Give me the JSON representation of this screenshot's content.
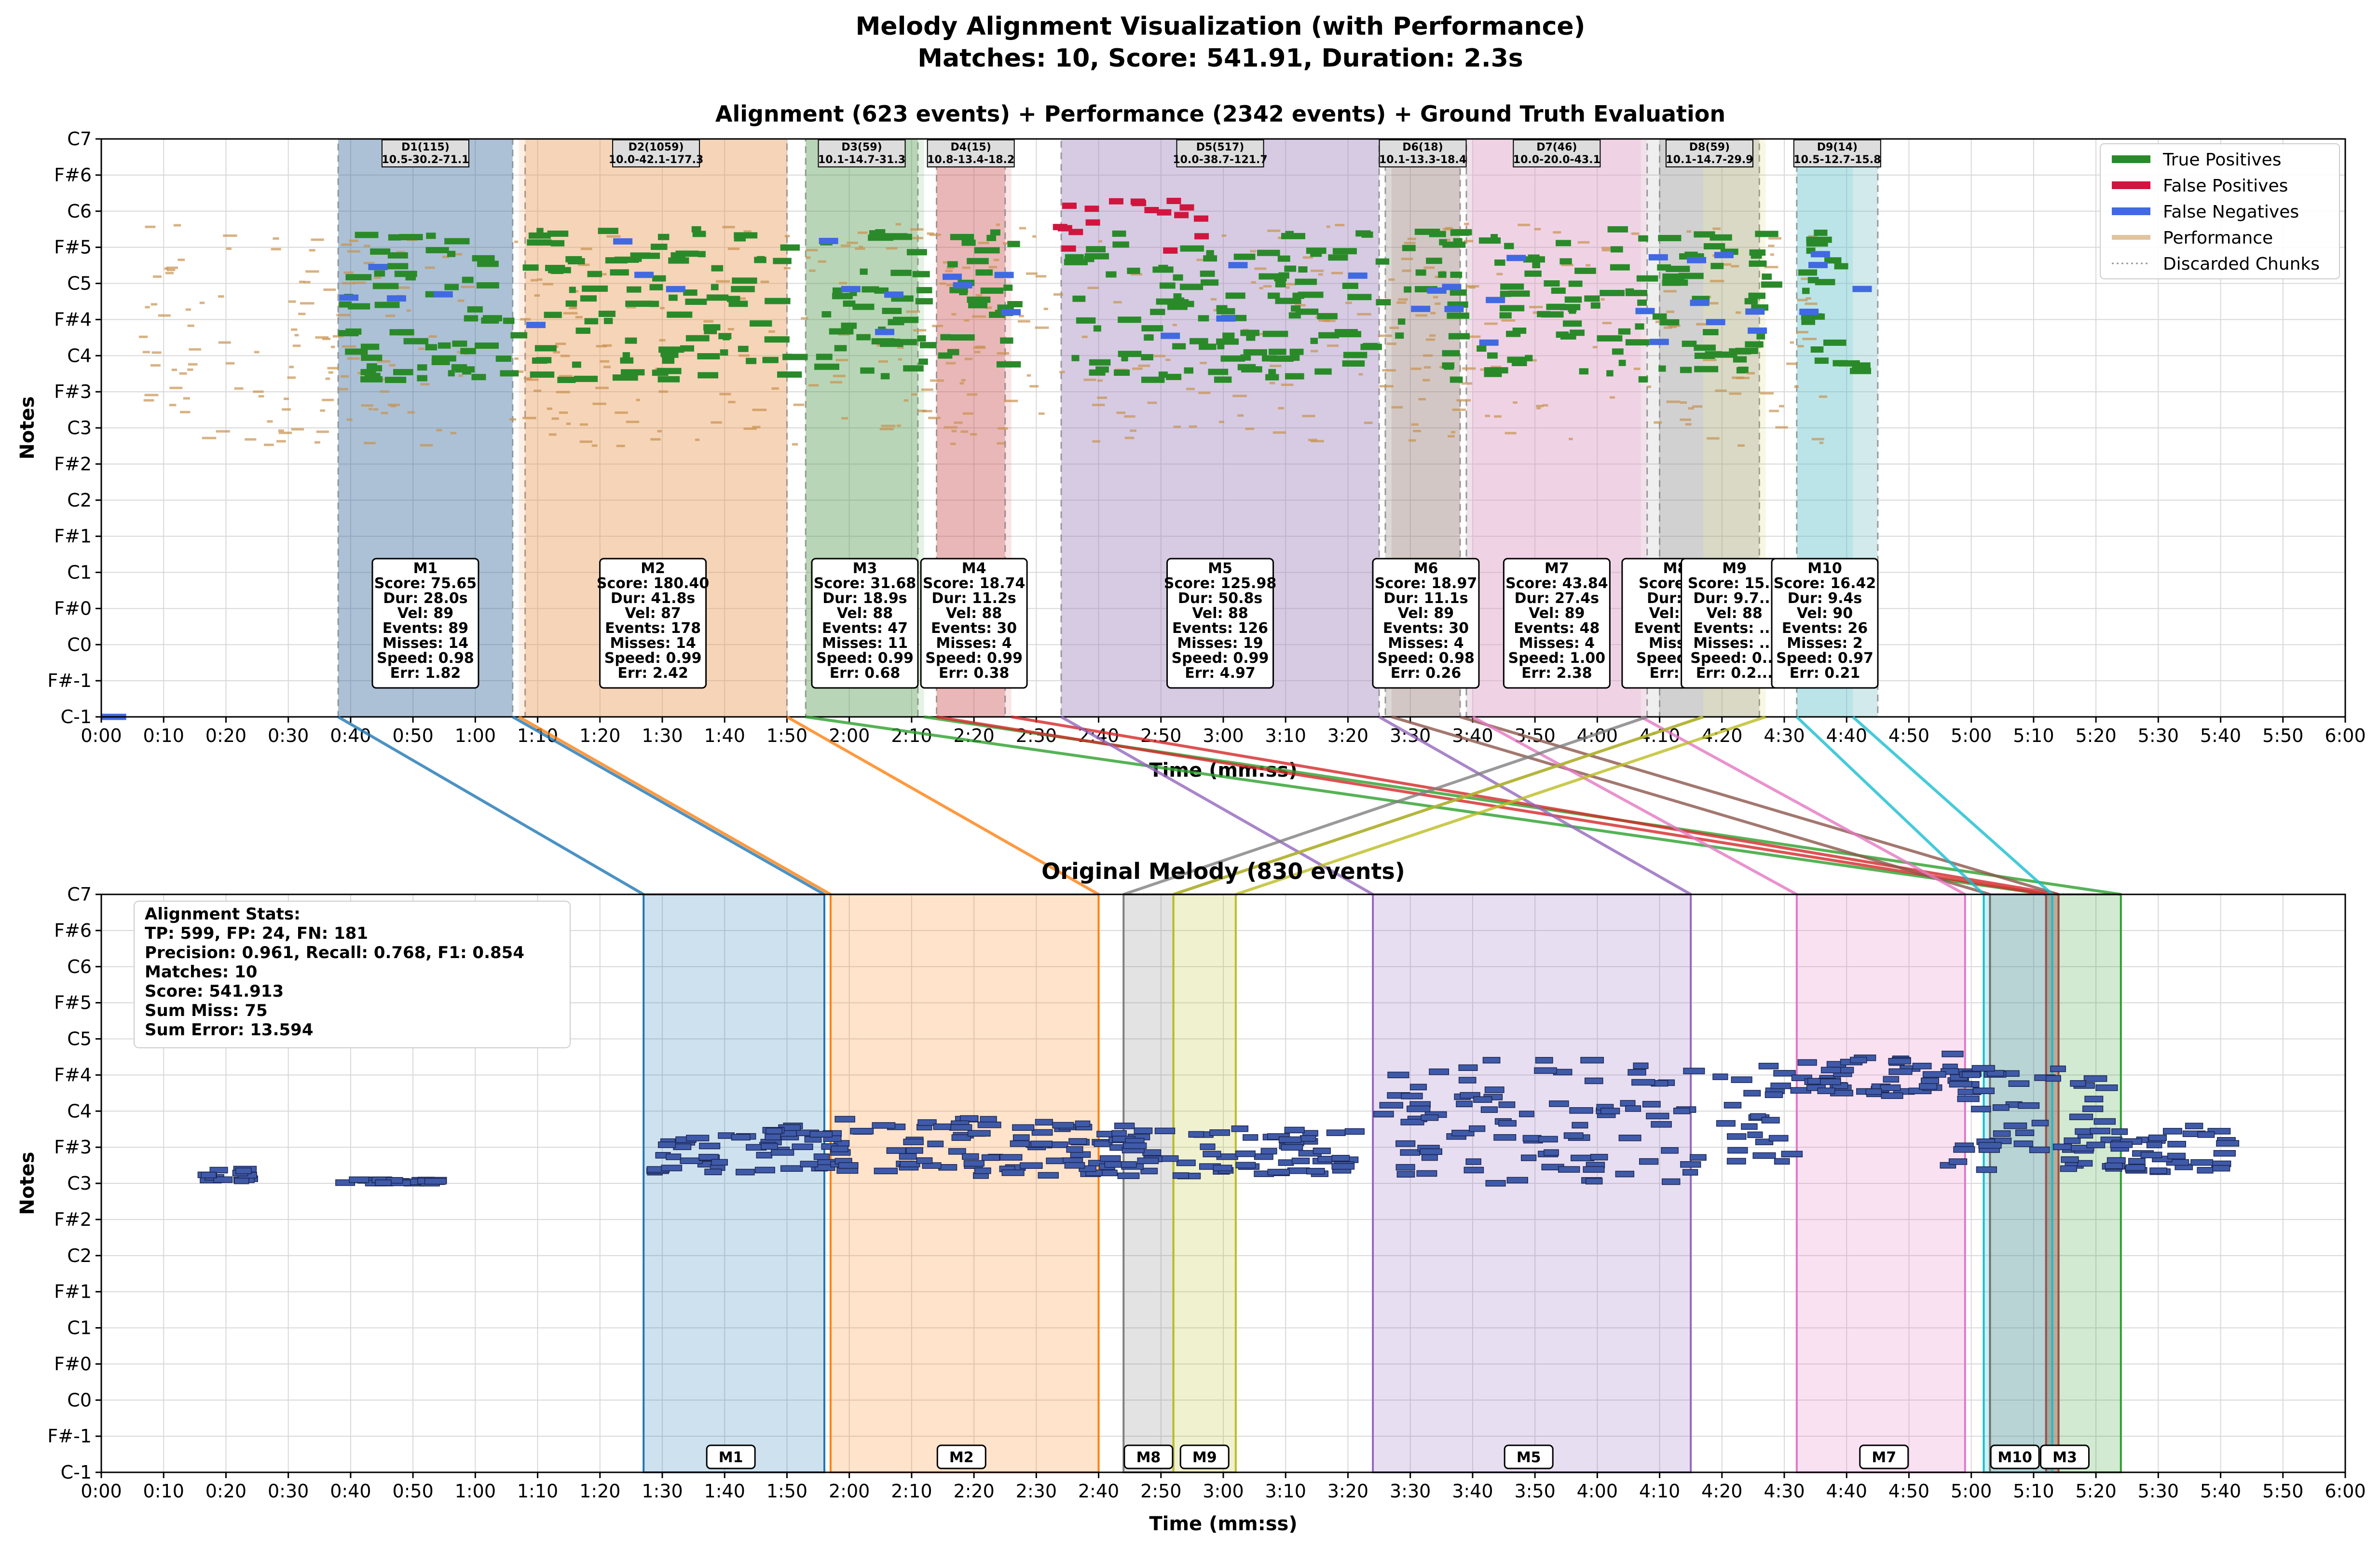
{
  "figure": {
    "title_line1": "Melody Alignment Visualization (with Performance)",
    "title_line2": "Matches: 10, Score: 541.91, Duration: 2.3s"
  },
  "colors": {
    "true_positive": "#2a8a2a",
    "false_positive": "#d0163e",
    "false_negative": "#4169e1",
    "performance": "#c8914e",
    "original_note": "#3f5aa8"
  },
  "chart_data": [
    {
      "type": "timeline",
      "title": "Alignment (623 events) + Performance (2342 events) + Ground Truth Evaluation",
      "xlabel": "Time (mm:ss)",
      "ylabel": "Notes",
      "xlim": [
        0,
        360
      ],
      "x_ticks": [
        "0:00",
        "0:10",
        "0:20",
        "0:30",
        "0:40",
        "0:50",
        "1:00",
        "1:10",
        "1:20",
        "1:30",
        "1:40",
        "1:50",
        "2:00",
        "2:10",
        "2:20",
        "2:30",
        "2:40",
        "2:50",
        "3:00",
        "3:10",
        "3:20",
        "3:30",
        "3:40",
        "3:50",
        "4:00",
        "4:10",
        "4:20",
        "4:30",
        "4:40",
        "4:50",
        "5:00",
        "5:10",
        "5:20",
        "5:30",
        "5:40",
        "5:50",
        "6:00"
      ],
      "y_ticks": [
        "C-1",
        "F#-1",
        "C0",
        "F#0",
        "C1",
        "F#1",
        "C2",
        "F#2",
        "C3",
        "F#3",
        "C4",
        "F#4",
        "C5",
        "F#5",
        "C6",
        "F#6",
        "C7"
      ],
      "grid": true,
      "legend_position": "top-right",
      "legend": [
        "True Positives",
        "False Positives",
        "False Negatives",
        "Performance",
        "Discarded Chunks"
      ],
      "discarded_chunks": [
        {
          "label": "D1(115)",
          "detail": "10.5-30.2-71.1",
          "start": 38,
          "end": 66
        },
        {
          "label": "D2(1059)",
          "detail": "10.0-42.1-177.3",
          "start": 68,
          "end": 110
        },
        {
          "label": "D3(59)",
          "detail": "10.1-14.7-31.3",
          "start": 113,
          "end": 131
        },
        {
          "label": "D4(15)",
          "detail": "10.8-13.4-18.2",
          "start": 134,
          "end": 145
        },
        {
          "label": "D5(517)",
          "detail": "10.0-38.7-121.7",
          "start": 154,
          "end": 205
        },
        {
          "label": "D6(18)",
          "detail": "10.1-13.3-18.4",
          "start": 206,
          "end": 218
        },
        {
          "label": "D7(46)",
          "detail": "10.0-20.0-43.1",
          "start": 219,
          "end": 248
        },
        {
          "label": "D8(59)",
          "detail": "10.1-14.7-29.9",
          "start": 250,
          "end": 266
        },
        {
          "label": "D9(14)",
          "detail": "10.5-12.7-15.8",
          "start": 272,
          "end": 285
        }
      ],
      "matches": [
        {
          "label": "M1",
          "score": "Score: 75.65",
          "dur": "Dur: 28.0s",
          "vel": "Vel: 89",
          "events": "Events: 89",
          "misses": "Misses: 14",
          "speed": "Speed: 0.98",
          "err": "Err: 1.82",
          "perf_start": 38,
          "perf_end": 66,
          "orig_start": 87,
          "orig_end": 116,
          "color": "#1f77b4"
        },
        {
          "label": "M2",
          "score": "Score: 180.40",
          "dur": "Dur: 41.8s",
          "vel": "Vel: 87",
          "events": "Events: 178",
          "misses": "Misses: 14",
          "speed": "Speed: 0.99",
          "err": "Err: 2.42",
          "perf_start": 67,
          "perf_end": 110,
          "orig_start": 117,
          "orig_end": 160,
          "color": "#ff7f0e"
        },
        {
          "label": "M3",
          "score": "Score: 31.68",
          "dur": "Dur: 18.9s",
          "vel": "Vel: 88",
          "events": "Events: 47",
          "misses": "Misses: 11",
          "speed": "Speed: 0.99",
          "err": "Err: 0.68",
          "perf_start": 113,
          "perf_end": 132,
          "orig_start": 312,
          "orig_end": 324,
          "color": "#2ca02c"
        },
        {
          "label": "M4",
          "score": "Score: 18.74",
          "dur": "Dur: 11.2s",
          "vel": "Vel: 88",
          "events": "Events: 30",
          "misses": "Misses: 4",
          "speed": "Speed: 0.99",
          "err": "Err: 0.38",
          "perf_start": 134,
          "perf_end": 146,
          "orig_start": 312,
          "orig_end": 314,
          "color": "#d62728"
        },
        {
          "label": "M5",
          "score": "Score: 125.98",
          "dur": "Dur: 50.8s",
          "vel": "Vel: 88",
          "events": "Events: 126",
          "misses": "Misses: 19",
          "speed": "Speed: 0.99",
          "err": "Err: 4.97",
          "perf_start": 154,
          "perf_end": 205,
          "orig_start": 204,
          "orig_end": 255,
          "color": "#9467bd"
        },
        {
          "label": "M6",
          "score": "Score: 18.97",
          "dur": "Dur: 11.1s",
          "vel": "Vel: 89",
          "events": "Events: 30",
          "misses": "Misses: 4",
          "speed": "Speed: 0.98",
          "err": "Err: 0.26",
          "perf_start": 207,
          "perf_end": 218,
          "orig_start": 303,
          "orig_end": 314,
          "color": "#8c564b"
        },
        {
          "label": "M7",
          "score": "Score: 43.84",
          "dur": "Dur: 27.4s",
          "vel": "Vel: 89",
          "events": "Events: 48",
          "misses": "Misses: 4",
          "speed": "Speed: 1.00",
          "err": "Err: 2.38",
          "perf_start": 220,
          "perf_end": 247,
          "orig_start": 272,
          "orig_end": 299,
          "color": "#e377c2"
        },
        {
          "label": "M8",
          "score": "Score: ...",
          "dur": "Dur: ...",
          "vel": "Vel: ...",
          "events": "Events: ...",
          "misses": "Miss...",
          "speed": "Speed: ...",
          "err": "Err: ...",
          "perf_start": 248,
          "perf_end": 257,
          "orig_start": 164,
          "orig_end": 172,
          "color": "#7f7f7f"
        },
        {
          "label": "M9",
          "score": "Score: 15...",
          "dur": "Dur: 9.7...",
          "vel": "Vel: 88",
          "events": "Events: ...",
          "misses": "Misses: ...",
          "speed": "Speed: 0...",
          "err": "Err: 0.2...",
          "perf_start": 257,
          "perf_end": 267,
          "orig_start": 172,
          "orig_end": 182,
          "color": "#bcbd22"
        },
        {
          "label": "M10",
          "score": "Score: 16.42",
          "dur": "Dur: 9.4s",
          "vel": "Vel: 90",
          "events": "Events: 26",
          "misses": "Misses: 2",
          "speed": "Speed: 0.97",
          "err": "Err: 0.21",
          "perf_start": 272,
          "perf_end": 281,
          "orig_start": 302,
          "orig_end": 313,
          "color": "#17becf"
        }
      ]
    },
    {
      "type": "timeline",
      "title": "Original Melody (830 events)",
      "xlabel": "Time (mm:ss)",
      "ylabel": "Notes",
      "xlim": [
        0,
        360
      ],
      "x_ticks": [
        "0:00",
        "0:10",
        "0:20",
        "0:30",
        "0:40",
        "0:50",
        "1:00",
        "1:10",
        "1:20",
        "1:30",
        "1:40",
        "1:50",
        "2:00",
        "2:10",
        "2:20",
        "2:30",
        "2:40",
        "2:50",
        "3:00",
        "3:10",
        "3:20",
        "3:30",
        "3:40",
        "3:50",
        "4:00",
        "4:10",
        "4:20",
        "4:30",
        "4:40",
        "4:50",
        "5:00",
        "5:10",
        "5:20",
        "5:30",
        "5:40",
        "5:50",
        "6:00"
      ],
      "y_ticks": [
        "C-1",
        "F#-1",
        "C0",
        "F#0",
        "C1",
        "F#1",
        "C2",
        "F#2",
        "C3",
        "F#3",
        "C4",
        "F#4",
        "C5",
        "F#5",
        "C6",
        "F#6",
        "C7"
      ],
      "grid": true,
      "region_labels": [
        "M1",
        "M2",
        "M8",
        "M9",
        "M5",
        "M7",
        "M10",
        "M3"
      ]
    }
  ],
  "stats": {
    "title": "Alignment Stats:",
    "line1": "TP: 599, FP: 24, FN: 181",
    "line2": "Precision: 0.961, Recall: 0.768, F1: 0.854",
    "line3": "Matches: 10",
    "line4": "Score: 541.913",
    "line5": "Sum Miss: 75",
    "line6": "Sum Error: 13.594"
  }
}
